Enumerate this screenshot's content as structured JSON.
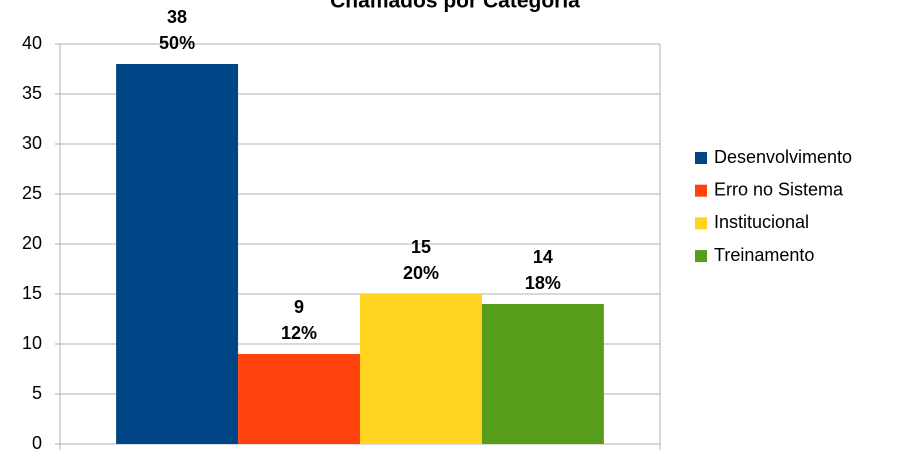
{
  "chart_data": {
    "type": "bar",
    "title": "Chamados por Categoria",
    "categories": [
      null
    ],
    "series": [
      {
        "name": "Desenvolvimento",
        "color": "#004586",
        "values": [
          38
        ],
        "percent_labels": [
          "50%"
        ]
      },
      {
        "name": "Erro no Sistema",
        "color": "#ff420e",
        "values": [
          9
        ],
        "percent_labels": [
          "12%"
        ]
      },
      {
        "name": "Institucional",
        "color": "#ffd320",
        "values": [
          15
        ],
        "percent_labels": [
          "20%"
        ]
      },
      {
        "name": "Treinamento",
        "color": "#579d1c",
        "values": [
          14
        ],
        "percent_labels": [
          "18%"
        ]
      }
    ],
    "ylim": [
      0,
      40
    ],
    "yticks": [
      0,
      5,
      10,
      15,
      20,
      25,
      30,
      35,
      40
    ],
    "grid": true,
    "legend": "right"
  }
}
